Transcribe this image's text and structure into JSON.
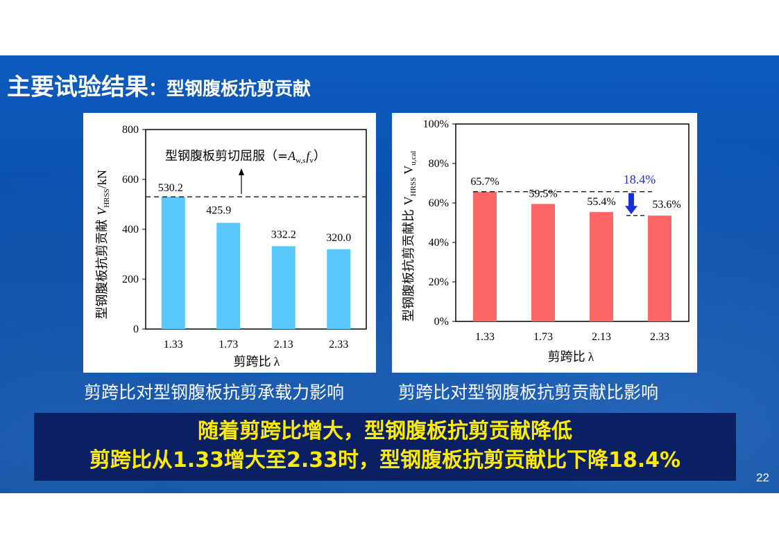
{
  "slide": {
    "title_main": "主要试验结果",
    "title_sep": "：",
    "title_sub": "型钢腹板抗剪贡献",
    "page_number": "22"
  },
  "captions": {
    "left": "剪跨比对型钢腹板抗剪承载力影响",
    "right": "剪跨比对型钢腹板抗剪贡献比影响"
  },
  "conclusion": {
    "line1": "随着剪跨比增大，型钢腹板抗剪贡献降低",
    "line2": "剪跨比从1.33增大至2.33时，型钢腹板抗剪贡献比下降18.4%"
  },
  "colors": {
    "band": "#0b4fa8",
    "bar_left": "#5bc8fb",
    "bar_right": "#ff6666",
    "highlight": "#ffeb00",
    "annotation_blue": "#1530e0"
  },
  "chart_data": [
    {
      "type": "bar",
      "categories": [
        "1.33",
        "1.73",
        "2.13",
        "2.33"
      ],
      "values": [
        530.2,
        425.9,
        332.2,
        320.0
      ],
      "value_labels": [
        "530.2",
        "425.9",
        "332.2",
        "320.0"
      ],
      "ylim": [
        0,
        800
      ],
      "yticks": [
        "0",
        "200",
        "400",
        "600",
        "800"
      ],
      "ylabel_cn": "型钢腹板抗剪贡献",
      "ylabel_sym": "V",
      "ylabel_sub": "HRSS",
      "ylabel_unit": "/kN",
      "xlabel_cn": "剪跨比",
      "xlabel_sym": "λ",
      "grid": false,
      "reference_line": {
        "value": 530.2,
        "label_cn": "型钢腹板剪切屈服",
        "label_open": "（=",
        "label_a": "A",
        "label_a_sub": "w,s",
        "label_f": "f",
        "label_f_sub": "v",
        "label_close": "）"
      }
    },
    {
      "type": "bar",
      "categories": [
        "1.33",
        "1.73",
        "2.13",
        "2.33"
      ],
      "values": [
        65.7,
        59.5,
        55.4,
        53.6
      ],
      "value_labels": [
        "65.7%",
        "59.5%",
        "55.4%",
        "53.6%"
      ],
      "ylim": [
        0,
        100
      ],
      "yticks": [
        "0%",
        "20%",
        "40%",
        "60%",
        "80%",
        "100%"
      ],
      "ylabel_cn": "型钢腹板抗剪贡献比",
      "ylabel_sym": "V",
      "ylabel_sub1": "HRSS",
      "ylabel_sym2": "V",
      "ylabel_sub2": "u,cal",
      "xlabel_cn": "剪跨比",
      "xlabel_sym": "λ",
      "grid": false,
      "decrease_annotation": {
        "from": 65.7,
        "to": 53.6,
        "label": "18.4%"
      }
    }
  ]
}
